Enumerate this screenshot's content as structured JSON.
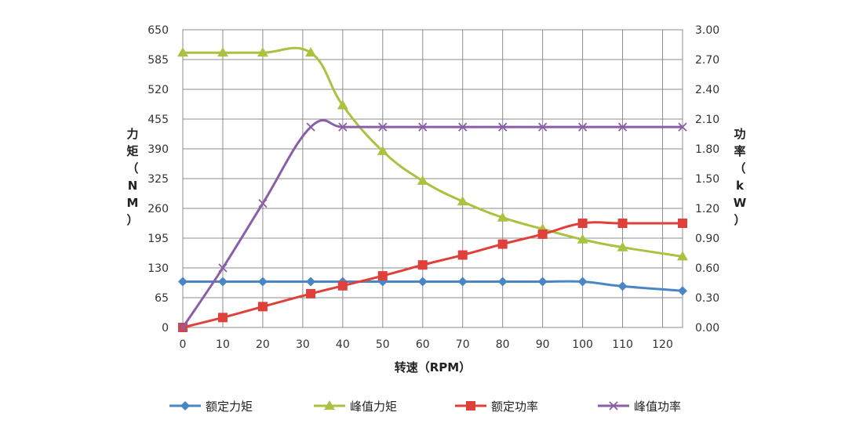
{
  "chart_data": {
    "type": "line",
    "title": "",
    "xlabel": "转速（RPM）",
    "ylabel": "力矩（NM）",
    "ylabel_right": "功率（kW）",
    "xlim": [
      0,
      125
    ],
    "ylim": [
      0,
      650
    ],
    "ylim_right": [
      0,
      3.0
    ],
    "grid": true,
    "legend_position": "bottom",
    "x_ticks": [
      "0",
      "10",
      "20",
      "30",
      "40",
      "50",
      "60",
      "70",
      "80",
      "90",
      "100",
      "110",
      "120"
    ],
    "y_ticks": [
      "0",
      "65",
      "130",
      "195",
      "260",
      "325",
      "390",
      "455",
      "520",
      "585",
      "650"
    ],
    "y_ticks_right": [
      "0.00",
      "0.30",
      "0.60",
      "0.90",
      "1.20",
      "1.50",
      "1.80",
      "2.10",
      "2.40",
      "2.70",
      "3.00"
    ],
    "series": [
      {
        "name": "额定力矩",
        "axis": "left",
        "color": "#4a86c6",
        "marker": "diamond",
        "x": [
          0,
          10,
          20,
          32,
          40,
          50,
          60,
          70,
          80,
          90,
          100,
          110,
          125
        ],
        "y": [
          100,
          100,
          100,
          100,
          100,
          100,
          100,
          100,
          100,
          100,
          100,
          90,
          80
        ]
      },
      {
        "name": "峰值力矩",
        "axis": "left",
        "color": "#a9c23f",
        "marker": "triangle",
        "x": [
          0,
          10,
          20,
          32,
          40,
          50,
          60,
          70,
          80,
          90,
          100,
          110,
          125
        ],
        "y": [
          600,
          600,
          600,
          600,
          485,
          385,
          320,
          275,
          240,
          215,
          192,
          175,
          155
        ]
      },
      {
        "name": "额定功率",
        "axis": "right",
        "color": "#e0403a",
        "marker": "square",
        "x": [
          0,
          10,
          20,
          32,
          40,
          50,
          60,
          70,
          80,
          90,
          100,
          110,
          125
        ],
        "y": [
          0,
          0.1,
          0.21,
          0.34,
          0.42,
          0.52,
          0.63,
          0.73,
          0.84,
          0.94,
          1.05,
          1.05,
          1.05
        ]
      },
      {
        "name": "峰值功率",
        "axis": "right",
        "color": "#8a5ea8",
        "marker": "x",
        "x": [
          0,
          10,
          20,
          32,
          40,
          50,
          60,
          70,
          80,
          90,
          100,
          110,
          125
        ],
        "y": [
          0,
          0.6,
          1.25,
          2.02,
          2.02,
          2.02,
          2.02,
          2.02,
          2.02,
          2.02,
          2.02,
          2.02,
          2.02
        ]
      }
    ]
  }
}
